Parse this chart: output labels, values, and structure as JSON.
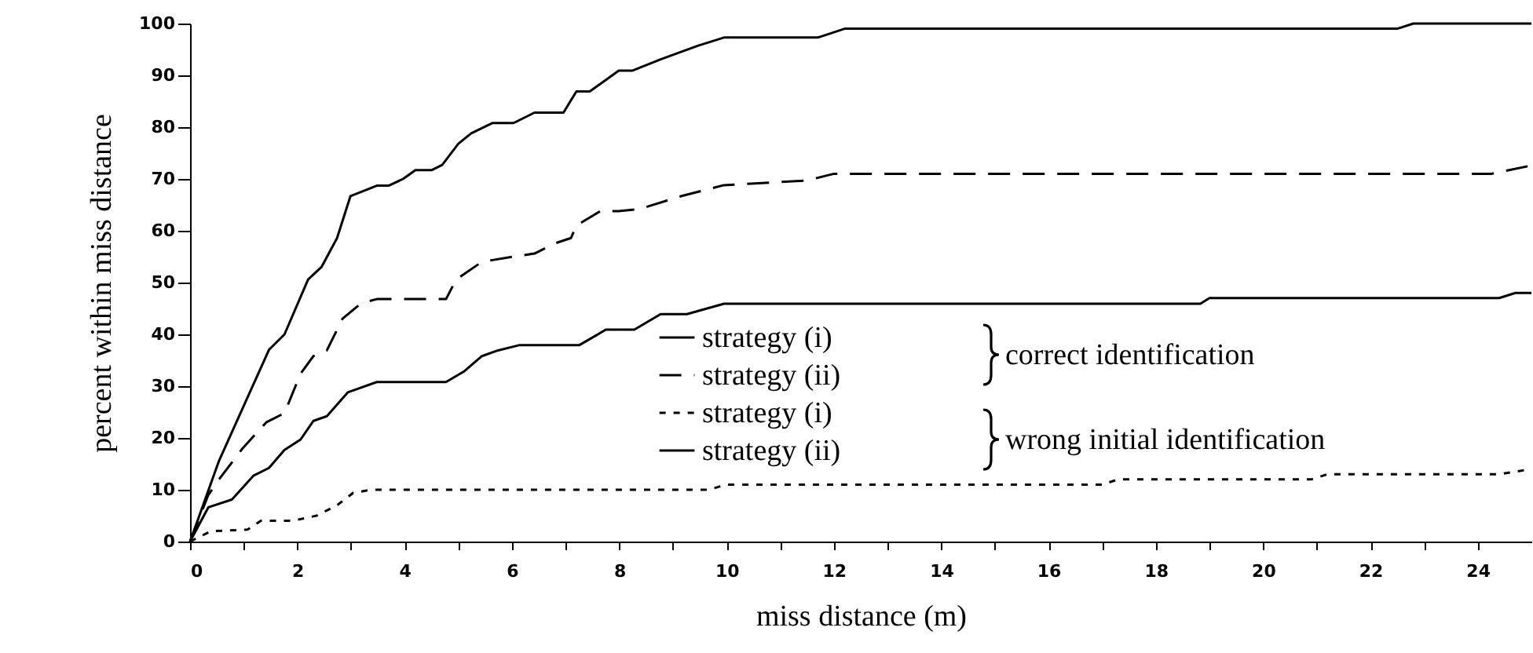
{
  "chart_data": {
    "type": "line",
    "xlabel": "miss distance (m)",
    "ylabel": "percent within miss distance",
    "xlim": [
      0,
      25
    ],
    "ylim": [
      0,
      100
    ],
    "xticks": [
      0,
      {
        "value": 1,
        "label": null
      },
      2,
      {
        "value": 3,
        "label": null
      },
      4,
      {
        "value": 5,
        "label": null
      },
      6,
      {
        "value": 7,
        "label": null
      },
      8,
      {
        "value": 9,
        "label": null
      },
      10,
      {
        "value": 11,
        "label": null
      },
      12,
      {
        "value": 13,
        "label": null
      },
      14,
      {
        "value": 15,
        "label": null
      },
      16,
      {
        "value": 17,
        "label": null
      },
      18,
      {
        "value": 19,
        "label": null
      },
      20,
      {
        "value": 21,
        "label": null
      },
      22,
      {
        "value": 23,
        "label": null
      },
      24
    ],
    "yticks": [
      0,
      10,
      20,
      30,
      40,
      50,
      60,
      70,
      80,
      90,
      100
    ],
    "grid": false,
    "legend": "bottom",
    "marker": "none",
    "annotations": [
      "correct identification",
      "wrong initial identification"
    ],
    "series": [
      {
        "name": "strategy (i)",
        "color": "#000000",
        "line_style": "solid",
        "x": [
          0,
          0.54,
          1.47,
          1.76,
          2.2,
          2.45,
          2.74,
          2.99,
          3.48,
          3.7,
          3.97,
          4.2,
          4.5,
          4.7,
          5.0,
          5.24,
          5.64,
          6.03,
          6.42,
          6.96,
          7.2,
          7.45,
          7.99,
          8.24,
          8.77,
          9.46,
          9.95,
          11.7,
          12.2,
          22.5,
          22.8,
          25
        ],
        "values": [
          0,
          15.6,
          37,
          40,
          50.6,
          53,
          58.6,
          66.7,
          68.7,
          68.7,
          70,
          71.7,
          71.7,
          72.7,
          76.8,
          78.8,
          80.8,
          80.8,
          82.8,
          82.8,
          86.9,
          86.9,
          90.9,
          90.9,
          93.1,
          95.7,
          97.3,
          97.3,
          99,
          99,
          100,
          100
        ]
      },
      {
        "name": "strategy (ii)",
        "color": "#000000",
        "line_style": "dashed",
        "x": [
          0,
          0.34,
          0.54,
          0.98,
          1.42,
          1.76,
          2.06,
          2.3,
          2.55,
          2.84,
          3.19,
          3.48,
          4.77,
          4.96,
          5.44,
          6.03,
          6.42,
          6.81,
          7.1,
          7.2,
          7.65,
          7.99,
          8.38,
          9.16,
          9.95,
          11.5,
          12.0,
          24.26,
          25
        ],
        "values": [
          0,
          9,
          12,
          18,
          23,
          24.8,
          32.4,
          35.8,
          36.9,
          43,
          46,
          46.8,
          46.8,
          50.6,
          54,
          55,
          55.6,
          57.6,
          58.6,
          61,
          63.8,
          63.8,
          64.2,
          66.7,
          68.8,
          69.7,
          71,
          71,
          72.6
        ]
      },
      {
        "name": "strategy (i)",
        "color": "#000000",
        "line_style": "dotted",
        "x": [
          0,
          0.39,
          1.07,
          1.32,
          1.91,
          2.36,
          2.74,
          3.04,
          3.38,
          9.66,
          10,
          17,
          17.3,
          20.9,
          21.2,
          24.4,
          25
        ],
        "values": [
          0,
          2,
          2.3,
          4,
          4,
          5,
          7,
          9.4,
          10,
          10,
          11,
          11,
          12,
          12,
          13,
          13,
          14
        ]
      },
      {
        "name": "strategy (ii)",
        "color": "#000000",
        "line_style": "solid",
        "x": [
          0,
          0.34,
          0.78,
          1.18,
          1.47,
          1.76,
          2.06,
          2.3,
          2.55,
          2.94,
          3.48,
          4.77,
          5.1,
          5.44,
          5.74,
          6.13,
          7.25,
          7.75,
          8.28,
          8.77,
          9.26,
          9.95,
          18.83,
          19.0,
          24.4,
          24.7,
          25
        ],
        "values": [
          0,
          6.6,
          8.1,
          12.7,
          14.2,
          17.7,
          19.7,
          23.3,
          24.2,
          28.8,
          30.8,
          30.8,
          32.8,
          35.8,
          36.9,
          37.9,
          37.9,
          40.9,
          40.9,
          43.9,
          43.9,
          45.9,
          45.9,
          47,
          47,
          48,
          48
        ]
      }
    ]
  }
}
